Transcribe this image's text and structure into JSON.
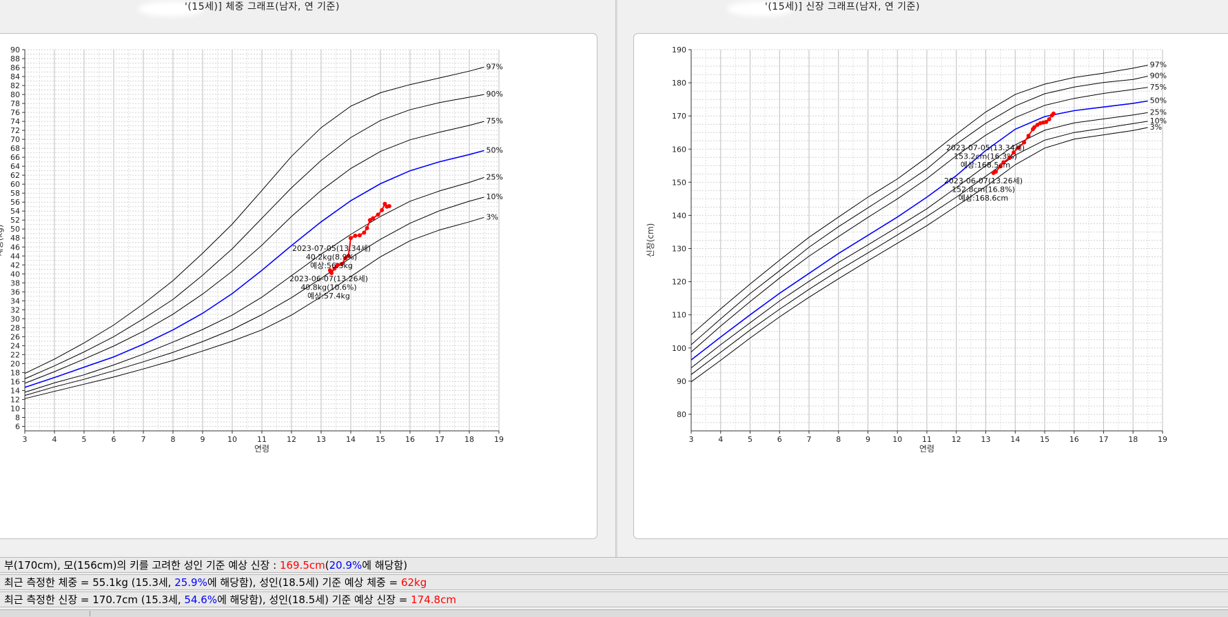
{
  "titles": {
    "left": "'(15세)] 체중 그래프(남자, 연 기준)",
    "right": "'(15세)] 신장 그래프(남자, 연 기준)"
  },
  "chart_data": [
    {
      "type": "line",
      "ylabel": "체중(kg)",
      "xlabel": "연령",
      "xlim": [
        3,
        19
      ],
      "ylim": [
        5,
        90
      ],
      "x_ticks": [
        3,
        4,
        5,
        6,
        7,
        8,
        9,
        10,
        11,
        12,
        13,
        14,
        15,
        16,
        17,
        18,
        19
      ],
      "y_ticks": [
        6,
        8,
        10,
        12,
        14,
        16,
        18,
        20,
        22,
        24,
        26,
        28,
        30,
        32,
        34,
        36,
        38,
        40,
        42,
        44,
        46,
        48,
        50,
        52,
        54,
        56,
        58,
        60,
        62,
        64,
        66,
        68,
        70,
        72,
        74,
        76,
        78,
        80,
        82,
        84,
        86,
        88,
        90
      ],
      "grid": true,
      "percentile_x": [
        3,
        4,
        5,
        6,
        7,
        8,
        9,
        10,
        11,
        12,
        13,
        14,
        15,
        16,
        17,
        18,
        18.5
      ],
      "series": [
        {
          "name": "97%",
          "values": [
            17.8,
            21.0,
            24.6,
            28.6,
            33.3,
            38.5,
            44.6,
            51.1,
            58.6,
            66.2,
            72.6,
            77.4,
            80.4,
            82.2,
            83.7,
            85.2,
            86.1
          ]
        },
        {
          "name": "90%",
          "values": [
            16.6,
            19.5,
            22.6,
            26.0,
            30.0,
            34.3,
            39.7,
            45.6,
            52.4,
            59.2,
            65.3,
            70.4,
            74.2,
            76.6,
            78.2,
            79.4,
            80.0
          ]
        },
        {
          "name": "75%",
          "values": [
            15.6,
            18.2,
            21.0,
            23.9,
            27.2,
            31.0,
            35.5,
            40.6,
            46.4,
            52.8,
            58.6,
            63.5,
            67.3,
            69.9,
            71.6,
            73.1,
            74.0
          ]
        },
        {
          "name": "50%",
          "values": [
            14.7,
            16.9,
            19.2,
            21.5,
            24.3,
            27.5,
            31.2,
            35.6,
            40.8,
            46.3,
            51.6,
            56.3,
            60.1,
            63.0,
            65.0,
            66.6,
            67.5
          ]
        },
        {
          "name": "25%",
          "values": [
            13.6,
            15.7,
            17.5,
            19.7,
            22.1,
            24.8,
            27.6,
            30.8,
            34.8,
            39.6,
            44.4,
            48.8,
            52.8,
            56.2,
            58.5,
            60.4,
            61.5
          ]
        },
        {
          "name": "10%",
          "values": [
            12.9,
            14.8,
            16.5,
            18.4,
            20.4,
            22.5,
            24.9,
            27.6,
            30.9,
            34.7,
            39.0,
            43.6,
            47.7,
            51.3,
            54.1,
            56.2,
            57.1
          ]
        },
        {
          "name": "3%",
          "values": [
            12.2,
            13.8,
            15.4,
            17.0,
            18.8,
            20.7,
            22.8,
            25.0,
            27.5,
            30.8,
            34.9,
            39.4,
            43.8,
            47.4,
            49.8,
            51.6,
            52.6
          ]
        }
      ],
      "measured": {
        "name": "측정값",
        "x": [
          13.3,
          13.35,
          13.45,
          13.55,
          13.7,
          13.82,
          13.92,
          14.0,
          14.15,
          14.3,
          14.45,
          14.55,
          14.65,
          14.75,
          14.92,
          15.05,
          15.15,
          15.22,
          15.3
        ],
        "y": [
          40.8,
          40.2,
          41.2,
          42.0,
          42.2,
          43.5,
          44.0,
          48.0,
          48.5,
          48.6,
          49.2,
          50.2,
          52.0,
          52.4,
          53.2,
          54.2,
          55.6,
          55.0,
          55.1
        ]
      },
      "annotations": [
        {
          "lines": [
            "2023-07-05(13.34세)",
            "40.2kg(8.9%)",
            "예상:56.3kg"
          ]
        },
        {
          "lines": [
            "2023-06-07(13.26세)",
            "40.8kg(10.6%)",
            "예상:57.4kg"
          ]
        }
      ]
    },
    {
      "type": "line",
      "ylabel": "신장(cm)",
      "xlabel": "연령",
      "xlim": [
        3,
        19
      ],
      "ylim": [
        75,
        190
      ],
      "x_ticks": [
        3,
        4,
        5,
        6,
        7,
        8,
        9,
        10,
        11,
        12,
        13,
        14,
        15,
        16,
        17,
        18,
        19
      ],
      "y_ticks": [
        80,
        90,
        100,
        110,
        120,
        130,
        140,
        150,
        160,
        170,
        180,
        190
      ],
      "grid": true,
      "percentile_x": [
        3,
        4,
        5,
        6,
        7,
        8,
        9,
        10,
        11,
        12,
        13,
        14,
        15,
        16,
        17,
        18,
        18.5
      ],
      "series": [
        {
          "name": "97%",
          "values": [
            104.0,
            111.8,
            119.3,
            126.5,
            133.4,
            139.5,
            145.5,
            151.0,
            157.5,
            164.5,
            171.2,
            176.5,
            179.6,
            181.6,
            182.9,
            184.4,
            185.3
          ]
        },
        {
          "name": "90%",
          "values": [
            101.0,
            108.8,
            116.4,
            123.3,
            130.4,
            136.6,
            142.3,
            148.0,
            154.0,
            161.5,
            167.8,
            173.0,
            176.7,
            178.7,
            180.1,
            181.0,
            182.0
          ]
        },
        {
          "name": "75%",
          "values": [
            98.8,
            106.6,
            114.0,
            121.1,
            127.7,
            133.6,
            139.4,
            145.0,
            151.1,
            158.0,
            164.2,
            169.5,
            173.2,
            175.3,
            176.8,
            178.0,
            178.6
          ]
        },
        {
          "name": "50%",
          "values": [
            96.4,
            103.3,
            110.0,
            116.5,
            122.5,
            128.5,
            134.0,
            139.5,
            145.5,
            152.0,
            159.6,
            166.0,
            169.8,
            171.6,
            172.7,
            173.8,
            174.5
          ]
        },
        {
          "name": "25%",
          "values": [
            94.0,
            101.0,
            107.6,
            114.2,
            120.1,
            125.8,
            131.1,
            136.5,
            142.0,
            148.4,
            155.0,
            161.3,
            165.7,
            167.9,
            169.1,
            170.3,
            171.0
          ]
        },
        {
          "name": "10%",
          "values": [
            92.0,
            98.7,
            105.4,
            111.7,
            117.7,
            123.4,
            128.7,
            134.1,
            139.7,
            145.5,
            151.8,
            158.2,
            162.7,
            165.0,
            166.3,
            167.7,
            168.4
          ]
        },
        {
          "name": "3%",
          "values": [
            89.8,
            96.3,
            103.0,
            109.4,
            115.3,
            120.9,
            126.3,
            131.6,
            136.9,
            142.8,
            148.7,
            155.3,
            160.3,
            163.0,
            164.3,
            165.6,
            166.5
          ]
        }
      ],
      "measured": {
        "name": "측정값",
        "x": [
          13.26,
          13.34,
          13.5,
          13.6,
          13.8,
          13.95,
          14.1,
          14.3,
          14.45,
          14.6,
          14.65,
          14.75,
          14.85,
          14.95,
          15.05,
          15.15,
          15.25,
          15.3
        ],
        "y": [
          152.8,
          153.2,
          154.8,
          156.0,
          157.3,
          159.0,
          160.4,
          162.0,
          164.0,
          166.0,
          166.6,
          167.3,
          167.8,
          168.0,
          168.2,
          169.0,
          170.2,
          170.7
        ]
      },
      "annotations": [
        {
          "lines": [
            "2023-07-05(13.34세)",
            "153.2cm(16.3%)",
            "예상:168.5cm"
          ]
        },
        {
          "lines": [
            "2023-06-07(13.26세)",
            "152.8cm(16.8%)",
            "예상:168.6cm"
          ]
        }
      ]
    }
  ],
  "info": {
    "row1": {
      "pre": "부(170cm), 모(156cm)의 키를 고려한 성인 기준 예상 신장 : ",
      "v1": "169.5cm",
      "paren_open": "(",
      "v2": "20.9%",
      "post": "에 해당함)"
    },
    "row2": {
      "pre": "최근 측정한 체중 = 55.1kg (15.3세, ",
      "v1": "25.9%",
      "mid": "에 해당함), 성인(18.5세) 기준 예상 체중 = ",
      "v2": "62kg"
    },
    "row3": {
      "pre": "최근 측정한 신장 = 170.7cm (15.3세, ",
      "v1": "54.6%",
      "mid": "에 해당함), 성인(18.5세) 기준 예상 신장 = ",
      "v2": "174.8cm"
    }
  },
  "colors": {
    "median": "#0000ff",
    "measured": "#ff0000",
    "percentile": "#000000",
    "highlight_red": "#ff0000",
    "highlight_blue": "#0000ff"
  }
}
